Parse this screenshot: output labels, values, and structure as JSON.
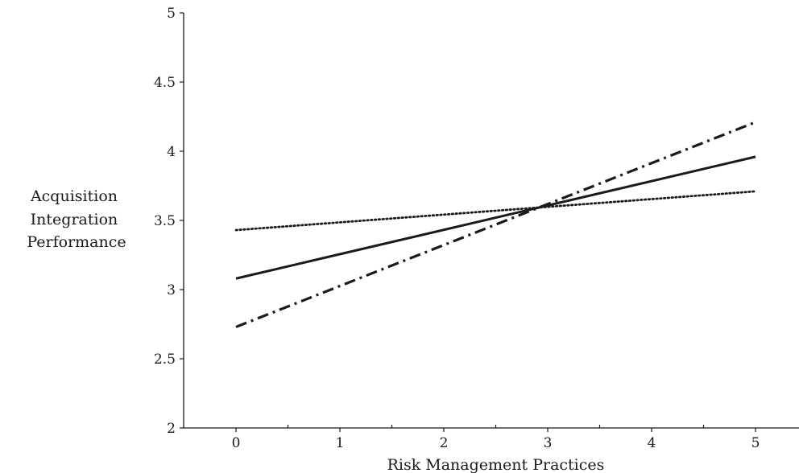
{
  "chart_data": {
    "type": "line",
    "title": "",
    "xlabel": "Risk Management Practices",
    "ylabel_lines": [
      "Acquisition",
      "Integration",
      "Performance"
    ],
    "xlim": [
      -0.5,
      5.3
    ],
    "ylim": [
      2,
      5
    ],
    "xticks": [
      0,
      1,
      2,
      3,
      4,
      5
    ],
    "xtick_labels": [
      "0",
      "1",
      "2",
      "3",
      "4",
      "5"
    ],
    "yticks": [
      2,
      2.5,
      3,
      3.5,
      4,
      4.5,
      5
    ],
    "ytick_labels": [
      "2",
      "2.5",
      "3",
      "3.5",
      "4",
      "4.5",
      "5"
    ],
    "grid": false,
    "legend": "none",
    "series": [
      {
        "style": "solid",
        "color": "#1a1a1a",
        "x": [
          0,
          5
        ],
        "y": [
          3.08,
          3.96
        ]
      },
      {
        "style": "dotted",
        "color": "#1a1a1a",
        "x": [
          0,
          5
        ],
        "y": [
          3.43,
          3.71
        ]
      },
      {
        "style": "dash-dot",
        "color": "#1a1a1a",
        "x": [
          0,
          5
        ],
        "y": [
          2.73,
          4.21
        ]
      }
    ]
  }
}
